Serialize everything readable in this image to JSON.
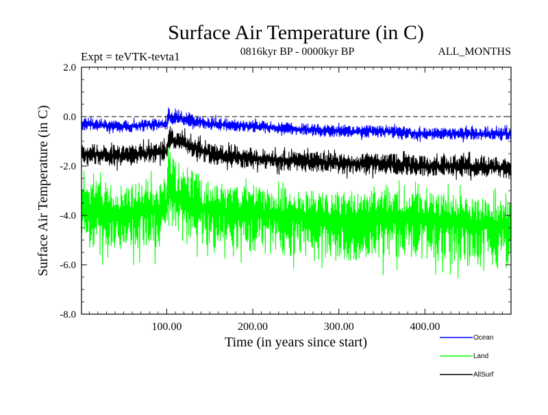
{
  "chart_data": {
    "type": "line",
    "title": "Surface Air Temperature (in C)",
    "subtitle_left": "Expt = teVTK-tevta1",
    "subtitle_center": "0816kyr BP - 0000kyr BP",
    "subtitle_right": "ALL_MONTHS",
    "xlabel": "Time (in years since start)",
    "ylabel": "Surface Air Temperature (in C)",
    "xlim": [
      1,
      500
    ],
    "ylim": [
      -8.0,
      2.0
    ],
    "x_ticks": [
      100,
      200,
      300,
      400
    ],
    "x_tick_labels": [
      "100.00",
      "200.00",
      "300.00",
      "400.00"
    ],
    "y_ticks": [
      -8,
      -6,
      -4,
      -2,
      0,
      2
    ],
    "y_tick_labels": [
      "-8.0",
      "-6.0",
      "-4.0",
      "-2.0",
      "0.0",
      "2.0"
    ],
    "reference_line": 0.0,
    "n_points": 500,
    "series": [
      {
        "name": "Land",
        "color": "#00ff00",
        "anchors_x": [
          1,
          50,
          100,
          102,
          150,
          200,
          250,
          300,
          350,
          400,
          450,
          500
        ],
        "anchors_mean": [
          -3.7,
          -3.9,
          -3.7,
          -3.1,
          -3.8,
          -3.9,
          -4.0,
          -4.1,
          -4.0,
          -4.1,
          -4.3,
          -4.4
        ],
        "spread_down": [
          2.2,
          2.3,
          2.2,
          2.0,
          2.2,
          2.3,
          2.4,
          2.5,
          2.5,
          2.5,
          2.5,
          2.4
        ],
        "spread_up": [
          1.6,
          1.6,
          1.7,
          2.4,
          1.6,
          1.5,
          1.5,
          1.5,
          1.5,
          1.5,
          1.5,
          1.5
        ]
      },
      {
        "name": "AllSurf",
        "color": "#000000",
        "anchors_x": [
          1,
          50,
          100,
          102,
          150,
          200,
          250,
          300,
          350,
          400,
          450,
          500
        ],
        "anchors_mean": [
          -1.5,
          -1.6,
          -1.4,
          -0.9,
          -1.5,
          -1.7,
          -1.8,
          -1.9,
          -1.9,
          -2.0,
          -2.0,
          -2.1
        ],
        "spread_down": [
          0.6,
          0.6,
          0.6,
          0.6,
          0.6,
          0.6,
          0.6,
          0.6,
          0.6,
          0.6,
          0.6,
          0.6
        ],
        "spread_up": [
          0.6,
          0.6,
          0.6,
          0.8,
          0.6,
          0.6,
          0.6,
          0.6,
          0.6,
          0.6,
          0.6,
          0.6
        ]
      },
      {
        "name": "Ocean",
        "color": "#0000ff",
        "anchors_x": [
          1,
          50,
          100,
          102,
          150,
          200,
          250,
          300,
          350,
          400,
          450,
          500
        ],
        "anchors_mean": [
          -0.3,
          -0.4,
          -0.3,
          0.0,
          -0.3,
          -0.4,
          -0.5,
          -0.6,
          -0.6,
          -0.7,
          -0.7,
          -0.7
        ],
        "spread_down": [
          0.35,
          0.35,
          0.35,
          0.35,
          0.35,
          0.35,
          0.35,
          0.35,
          0.35,
          0.35,
          0.35,
          0.35
        ],
        "spread_up": [
          0.4,
          0.35,
          0.35,
          0.55,
          0.4,
          0.35,
          0.35,
          0.35,
          0.35,
          0.35,
          0.35,
          0.35
        ]
      }
    ],
    "legend": [
      {
        "name": "Ocean",
        "color": "#0000ff"
      },
      {
        "name": "Land",
        "color": "#00ff00"
      },
      {
        "name": "AllSurf",
        "color": "#000000"
      }
    ],
    "legend_position": "bottom-right"
  }
}
